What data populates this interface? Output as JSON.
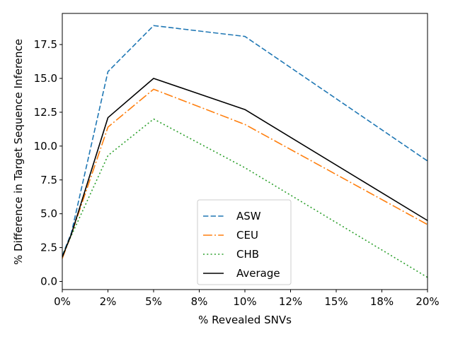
{
  "chart_data": {
    "type": "line",
    "xlabel": "% Revealed SNVs",
    "ylabel": "% Difference in Target Sequence Inference",
    "x": [
      0,
      0.5,
      2.5,
      5,
      10,
      20
    ],
    "xlim": [
      0,
      20
    ],
    "xticks": [
      0,
      2.5,
      5,
      7.5,
      10,
      12.5,
      15,
      17.5,
      20
    ],
    "xtick_labels": [
      "0%",
      "2%",
      "5%",
      "8%",
      "10%",
      "12%",
      "15%",
      "18%",
      "20%"
    ],
    "ylim": [
      -0.6,
      19.8
    ],
    "yticks": [
      0.0,
      2.5,
      5.0,
      7.5,
      10.0,
      12.5,
      15.0,
      17.5
    ],
    "ytick_labels": [
      "0.0",
      "2.5",
      "5.0",
      "7.5",
      "10.0",
      "12.5",
      "15.0",
      "17.5"
    ],
    "grid": false,
    "legend_position": "lower-center",
    "series": [
      {
        "name": "ASW",
        "values": [
          1.9,
          3.6,
          15.5,
          18.9,
          18.1,
          8.9
        ],
        "color": "#1f77b4",
        "style": "dashed"
      },
      {
        "name": "CEU",
        "values": [
          1.7,
          3.5,
          11.4,
          14.2,
          11.6,
          4.2
        ],
        "color": "#ff7f0e",
        "style": "dashdot"
      },
      {
        "name": "CHB",
        "values": [
          1.9,
          3.4,
          9.3,
          12.0,
          8.4,
          0.3
        ],
        "color": "#2ca02c",
        "style": "dotted"
      },
      {
        "name": "Average",
        "values": [
          1.8,
          3.5,
          12.1,
          15.0,
          12.7,
          4.5
        ],
        "color": "#000000",
        "style": "solid"
      }
    ]
  }
}
